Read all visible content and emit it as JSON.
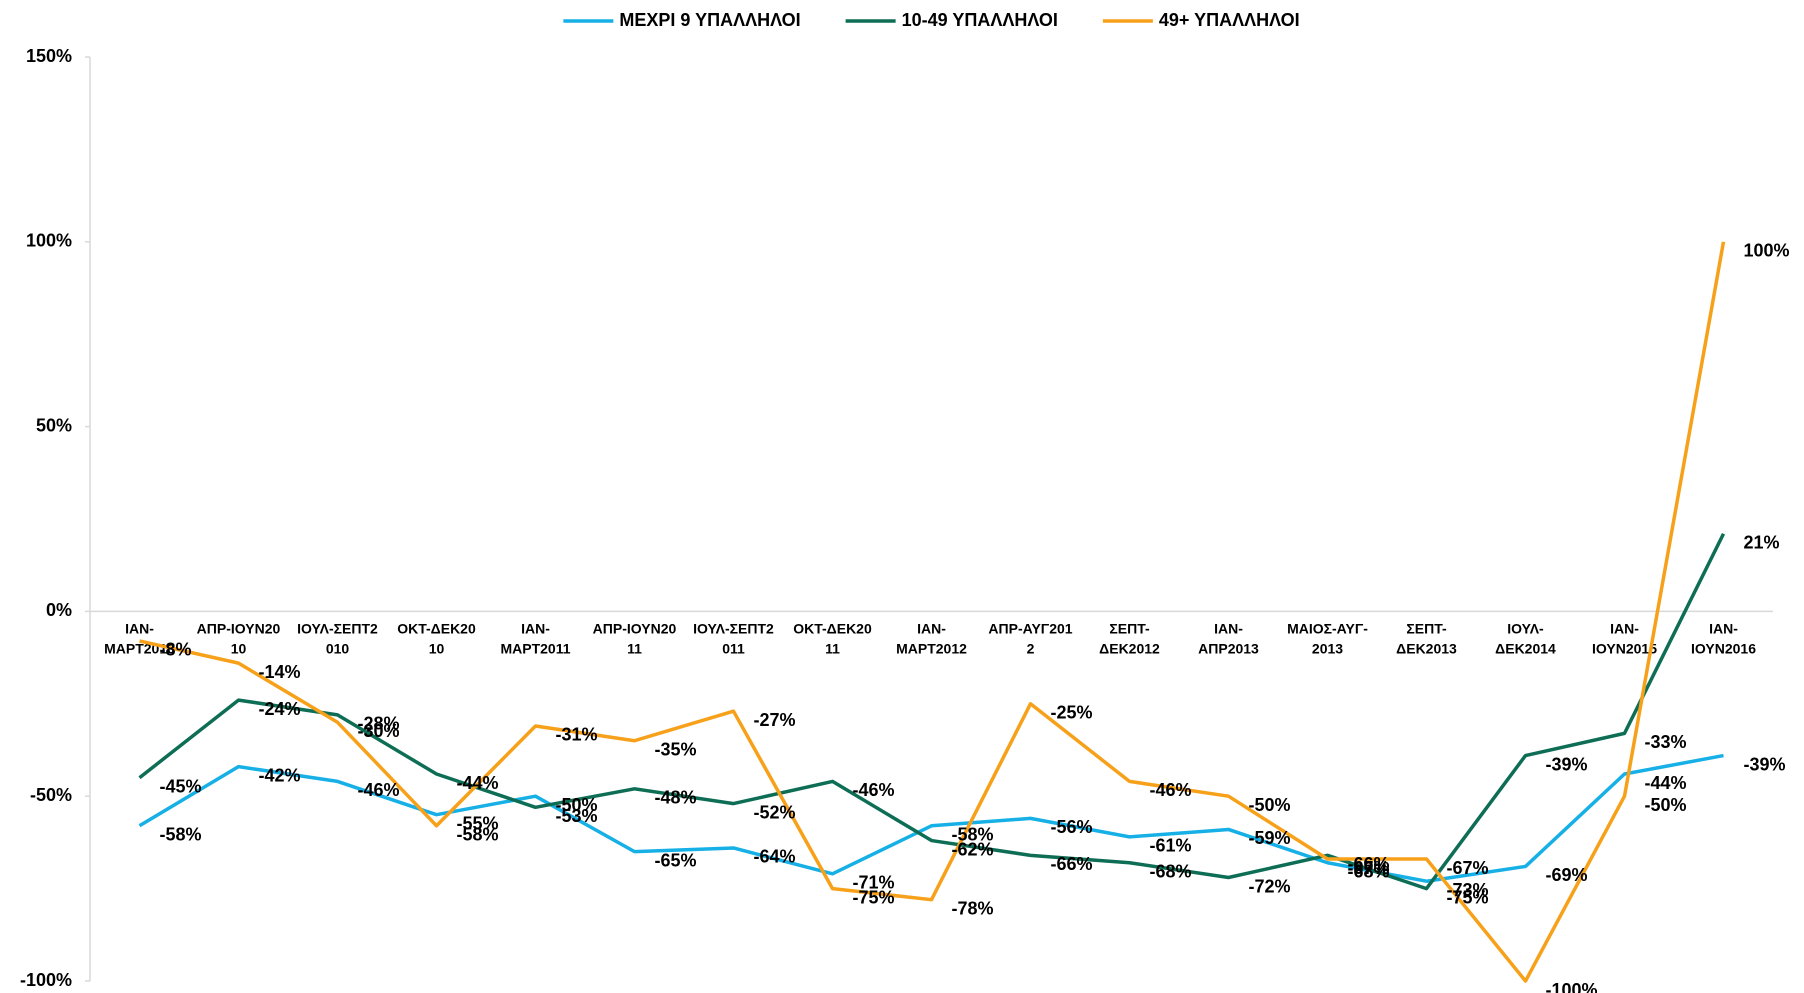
{
  "chart_data": {
    "type": "line",
    "categories": [
      "ΙΑΝ-\nΜΑΡΤ2010",
      "ΑΠΡ-ΙΟΥΝ20\n10",
      "ΙΟΥΛ-ΣΕΠΤ2\n010",
      "ΟΚΤ-ΔΕΚ20\n10",
      "ΙΑΝ-\nΜΑΡΤ2011",
      "ΑΠΡ-ΙΟΥΝ20\n11",
      "ΙΟΥΛ-ΣΕΠΤ2\n011",
      "ΟΚΤ-ΔΕΚ20\n11",
      "ΙΑΝ-\nΜΑΡΤ2012",
      "ΑΠΡ-ΑΥΓ201\n2",
      "ΣΕΠΤ-\nΔΕΚ2012",
      "ΙΑΝ-\nΑΠΡ2013",
      "ΜΑΙΟΣ-ΑΥΓ-\n2013",
      "ΣΕΠΤ-\nΔΕΚ2013",
      "ΙΟΥΛ-\nΔΕΚ2014",
      "ΙΑΝ-\nΙΟΥΝ2015",
      "ΙΑΝ-\nΙΟΥΝ2016"
    ],
    "series": [
      {
        "name": "ΜΕΧΡΙ 9 ΥΠΑΛΛΗΛΟΙ",
        "color": "#17b0e6",
        "values": [
          -58,
          -42,
          -46,
          -55,
          -50,
          -65,
          -64,
          -71,
          -58,
          -56,
          -61,
          -59,
          -68,
          -73,
          -69,
          -44,
          -39
        ],
        "value_labels": [
          "-58%",
          "-42%",
          "-46%",
          "-55%",
          "-50%",
          "-65%",
          "-64%",
          "-71%",
          "-58%",
          "-56%",
          "-61%",
          "-59%",
          "-68%",
          "-73%",
          "-69%",
          "-44%",
          "-39%"
        ]
      },
      {
        "name": "10-49 ΥΠΑΛΛΗΛΟΙ",
        "color": "#0e6e55",
        "values": [
          -45,
          -24,
          -28,
          -44,
          -53,
          -48,
          -52,
          -46,
          -62,
          -66,
          -68,
          -72,
          -66,
          -75,
          -39,
          -33,
          21
        ],
        "value_labels": [
          "-45%",
          "-24%",
          "-28%",
          "-44%",
          "-53%",
          "-48%",
          "-52%",
          "-46%",
          "-62%",
          "-66%",
          "-68%",
          "-72%",
          "-66%",
          "-75%",
          "-39%",
          "-33%",
          "21%"
        ]
      },
      {
        "name": "49+ ΥΠΑΛΛΗΛΟΙ",
        "color": "#f7a11a",
        "values": [
          -8,
          -14,
          -30,
          -58,
          -31,
          -35,
          -27,
          -75,
          -78,
          -25,
          -46,
          -50,
          -67,
          -67,
          -100,
          -50,
          100
        ],
        "value_labels": [
          "-8%",
          "-14%",
          "-30%",
          "-58%",
          "-31%",
          "-35%",
          "-27%",
          "-75%",
          "-78%",
          "-25%",
          "-46%",
          "-50%",
          "-67%",
          "-67%",
          "-100%",
          "-50%",
          "100%"
        ]
      }
    ],
    "ylim": [
      -100,
      150
    ],
    "yticks": [
      {
        "value": -100,
        "label": "-100%"
      },
      {
        "value": -50,
        "label": "-50%"
      },
      {
        "value": 0,
        "label": "0%"
      },
      {
        "value": 50,
        "label": "50%"
      },
      {
        "value": 100,
        "label": "100%"
      },
      {
        "value": 150,
        "label": "150%"
      }
    ],
    "grid": false,
    "legend": "top"
  }
}
